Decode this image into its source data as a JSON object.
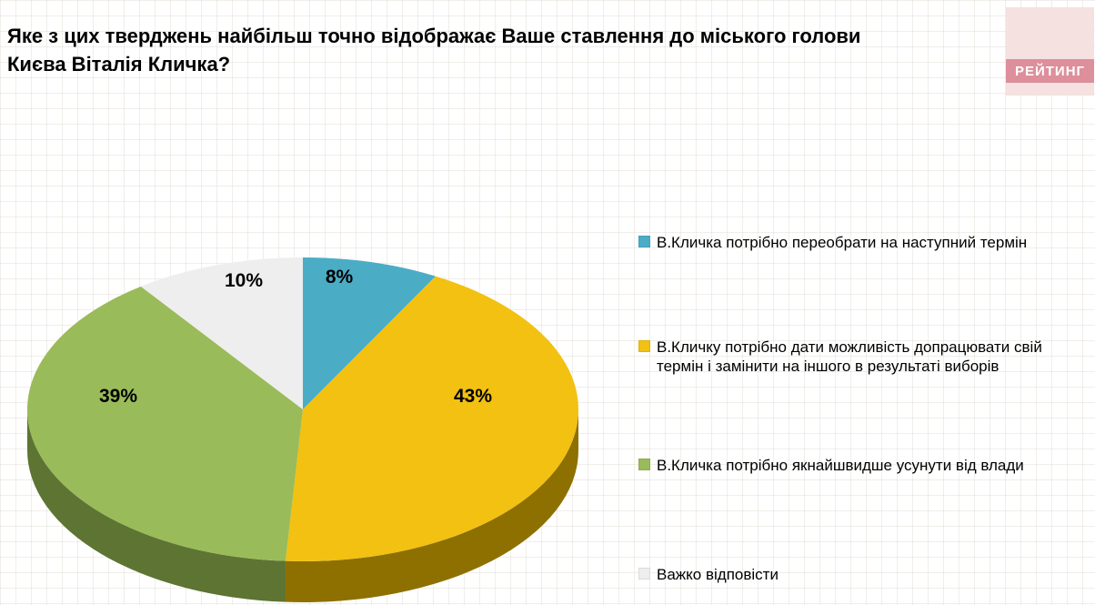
{
  "title": {
    "line1": "Яке з цих тверджень найбільш точно відображає Ваше ставлення до міського голови",
    "line2": "Києва Віталія Кличка?"
  },
  "logo": {
    "text": "РЕЙТИНГ"
  },
  "chart_data": {
    "type": "pie",
    "style": "3d",
    "title": "Яке з цих тверджень найбільш точно відображає Ваше ставлення до міського голови Києва Віталія Кличка?",
    "labels": [
      "В.Кличка  потрібно переобрати на наступний термін",
      "В.Кличку потрібно дати можливість допрацювати свій термін і замінити на іншого в результаті виборів",
      "В.Кличка потрібно якнайшвидше усунути від влади",
      "Важко відповісти"
    ],
    "values": [
      8,
      43,
      39,
      10
    ],
    "value_labels": [
      "8%",
      "43%",
      "39%",
      "10%"
    ],
    "colors": [
      "#4BACC6",
      "#F2C111",
      "#9ABB59",
      "#EEEEEE"
    ],
    "side_colors": [
      "#2E7A91",
      "#8E7001",
      "#5E7433",
      "#BFBFBF"
    ],
    "legend_position": "right",
    "start_angle_deg": 0,
    "direction": "clockwise"
  }
}
